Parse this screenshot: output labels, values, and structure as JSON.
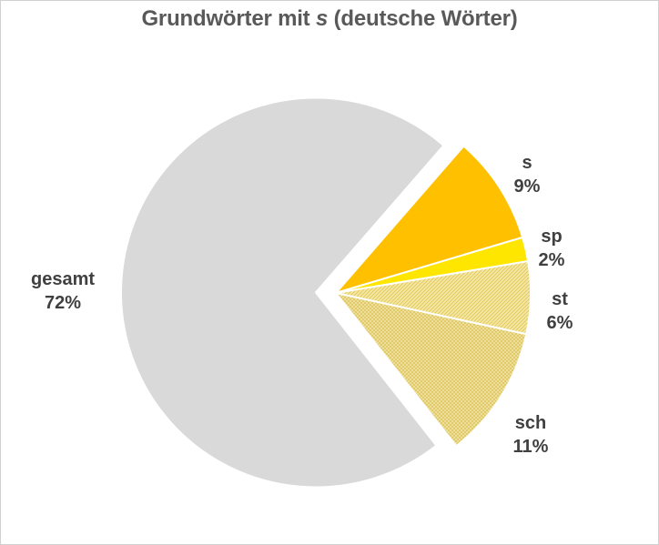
{
  "chart_data": {
    "type": "pie",
    "title_prefix": "Grundwörter mit ",
    "title_italic": "s",
    "title_suffix": " (deutsche Wörter)",
    "categories": [
      "s",
      "sp",
      "st",
      "sch",
      "gesamt"
    ],
    "values": [
      9,
      2,
      6,
      11,
      72
    ],
    "value_labels": [
      "9%",
      "2%",
      "6%",
      "11%",
      "72%"
    ],
    "colors": [
      "#FFC000",
      "#FFE600",
      "#F7E07A",
      "#EFDB8C",
      "#D9D9D9"
    ],
    "patterns": [
      "solid",
      "solid",
      "hatch",
      "hatch",
      "solid"
    ],
    "exploded_slice": "gesamt",
    "legend": "none"
  }
}
